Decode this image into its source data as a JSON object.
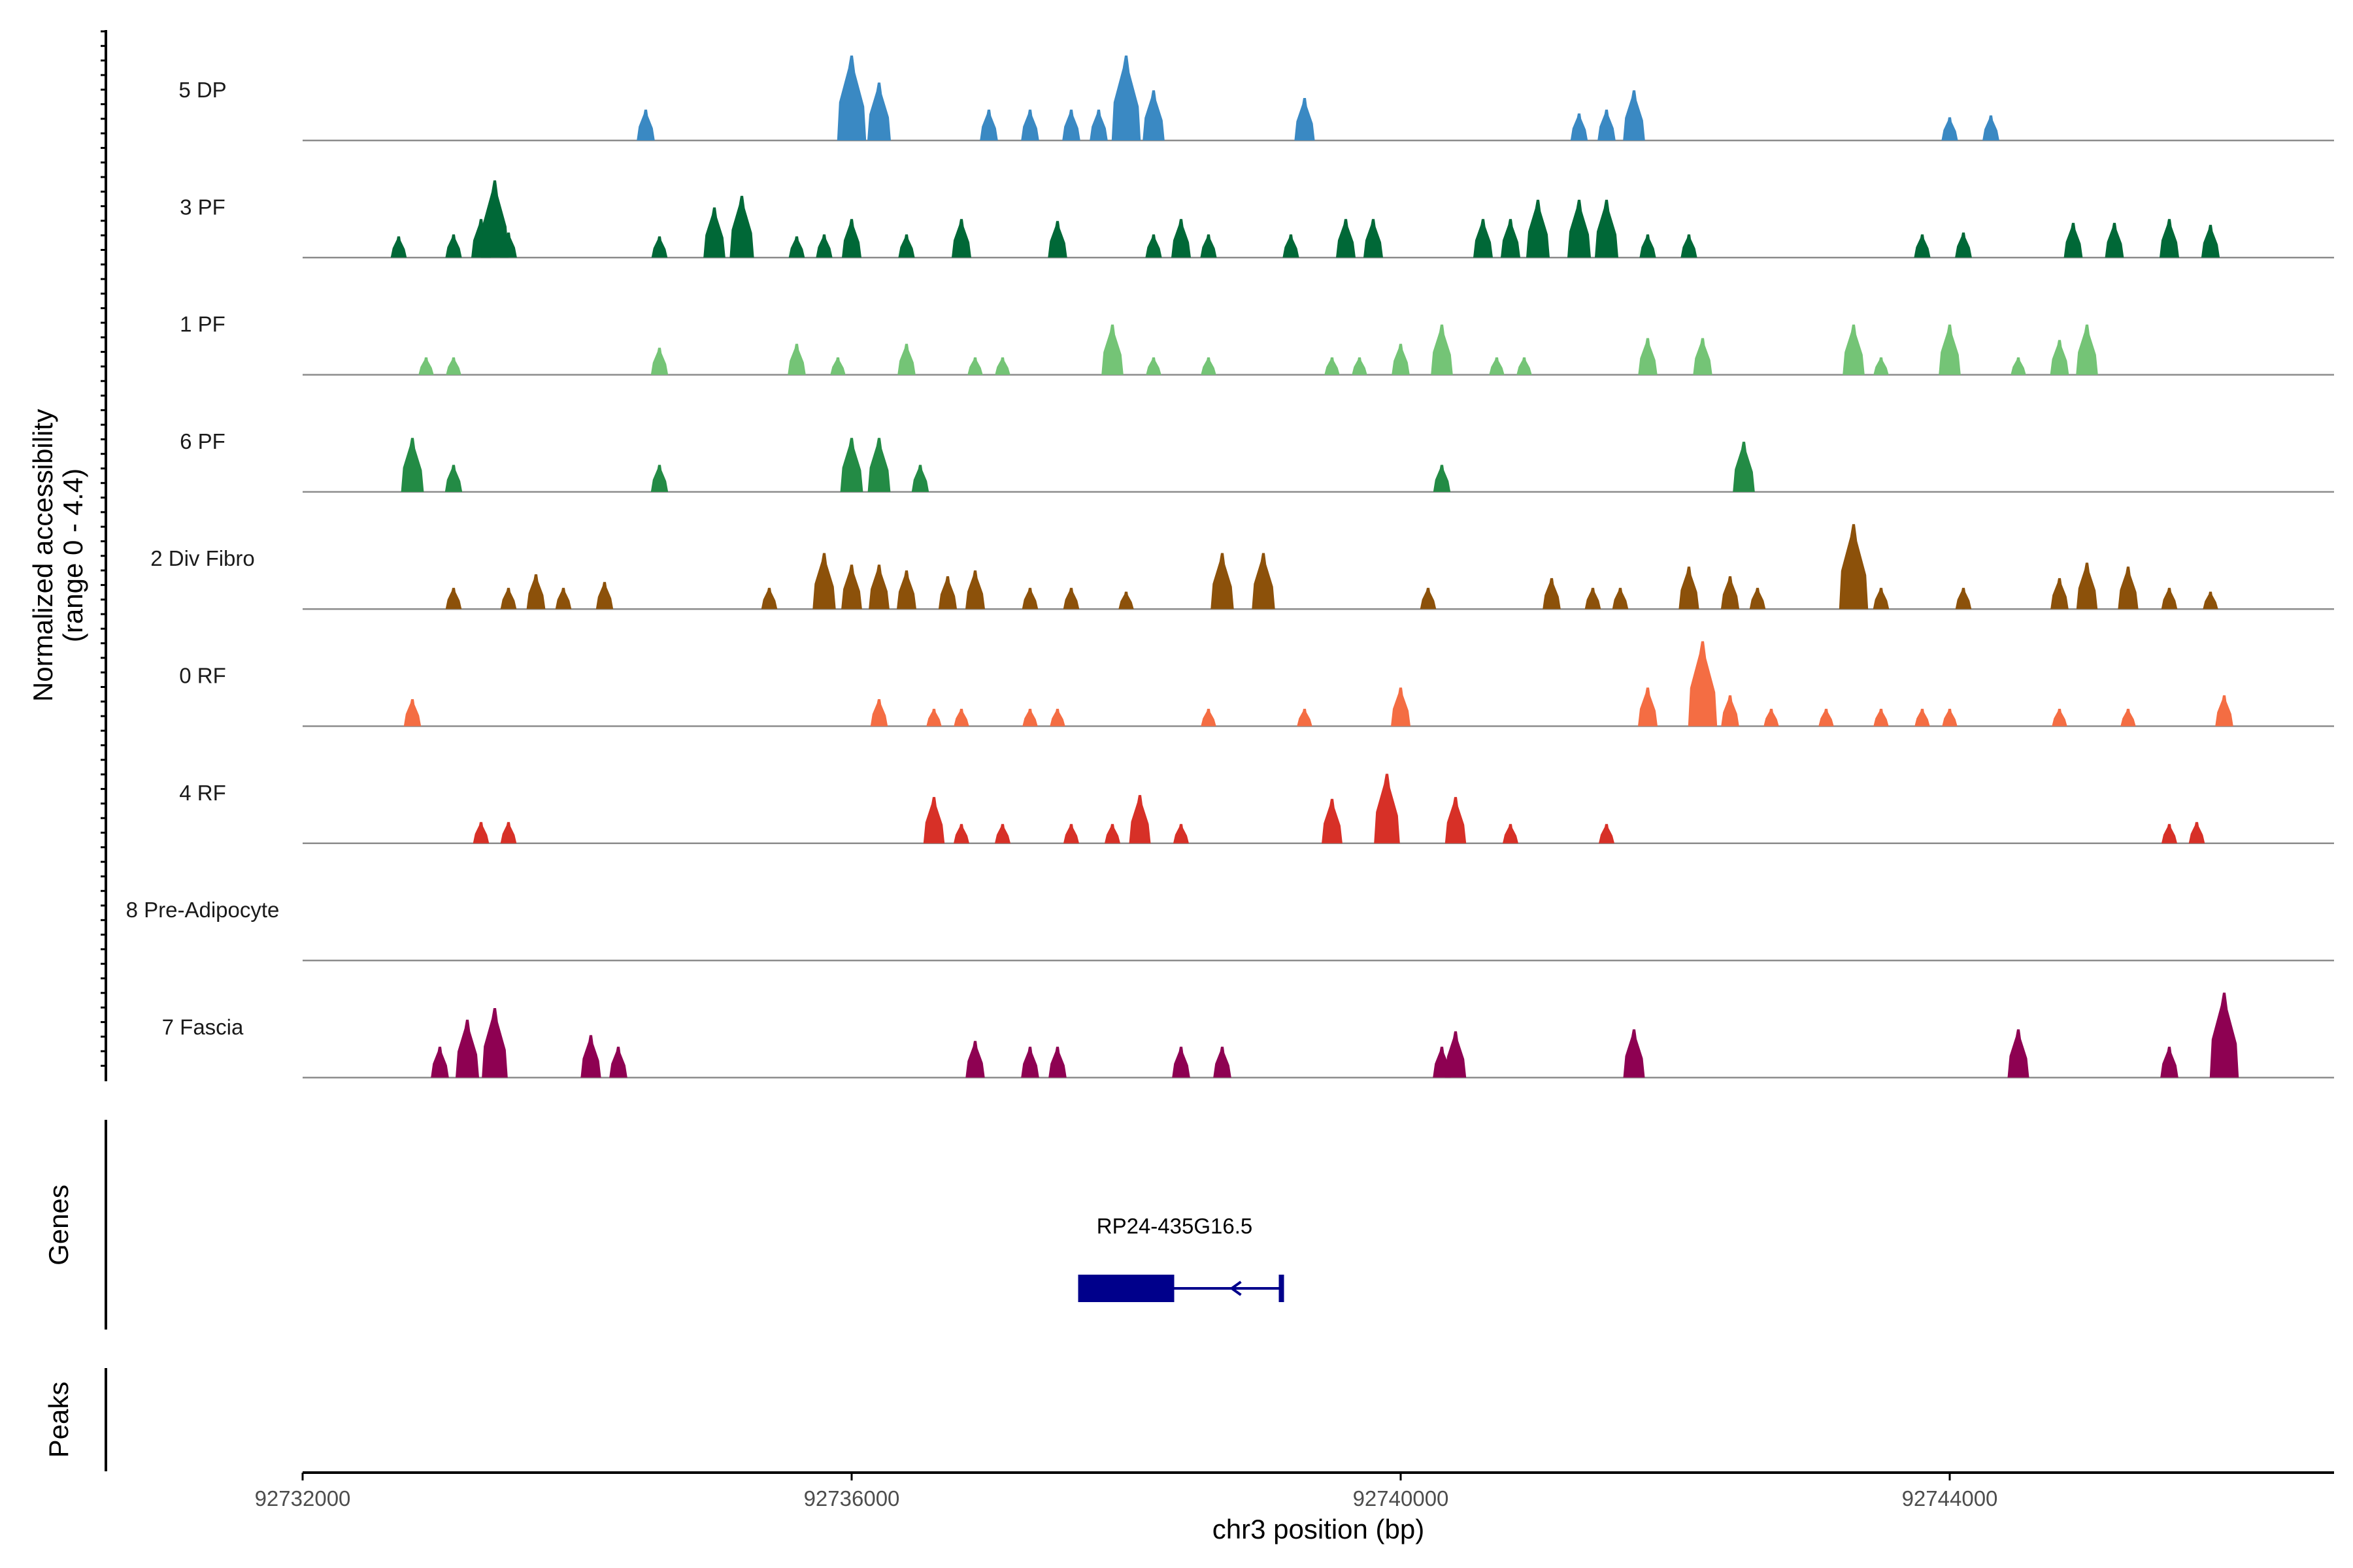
{
  "chart_data": {
    "type": "genome-coverage",
    "ylabel_line1": "Normalized accessibility",
    "ylabel_line2": "(range 0 - 4.4)",
    "y_range": [
      0,
      4.4
    ],
    "xlabel": "chr3 position (bp)",
    "x_range": [
      92732000,
      92746800
    ],
    "x_ticks": [
      92732000,
      92736000,
      92740000,
      92744000
    ],
    "x_tick_labels": [
      "92732000",
      "92736000",
      "92740000",
      "92744000"
    ],
    "tracks": [
      {
        "name": "5 DP",
        "color": "#3a89c3",
        "peaks": [
          [
            92734500,
            1.6
          ],
          [
            92736000,
            4.4
          ],
          [
            92736200,
            3.0
          ],
          [
            92737000,
            1.6
          ],
          [
            92737300,
            1.6
          ],
          [
            92737600,
            1.6
          ],
          [
            92737800,
            1.6
          ],
          [
            92738000,
            4.4
          ],
          [
            92738200,
            2.6
          ],
          [
            92739300,
            2.2
          ],
          [
            92741300,
            1.4
          ],
          [
            92741500,
            1.6
          ],
          [
            92741700,
            2.6
          ],
          [
            92744000,
            1.2
          ],
          [
            92744300,
            1.3
          ]
        ]
      },
      {
        "name": "3 PF",
        "color": "#006837",
        "peaks": [
          [
            92732700,
            1.1
          ],
          [
            92733100,
            1.2
          ],
          [
            92733300,
            2.0
          ],
          [
            92733400,
            4.0
          ],
          [
            92733500,
            1.3
          ],
          [
            92734600,
            1.1
          ],
          [
            92735000,
            2.6
          ],
          [
            92735200,
            3.2
          ],
          [
            92735600,
            1.1
          ],
          [
            92735800,
            1.2
          ],
          [
            92736000,
            2.0
          ],
          [
            92736400,
            1.2
          ],
          [
            92736800,
            2.0
          ],
          [
            92737500,
            1.9
          ],
          [
            92738200,
            1.2
          ],
          [
            92738400,
            2.0
          ],
          [
            92738600,
            1.2
          ],
          [
            92739200,
            1.2
          ],
          [
            92739600,
            2.0
          ],
          [
            92739800,
            2.0
          ],
          [
            92740600,
            2.0
          ],
          [
            92740800,
            2.0
          ],
          [
            92741000,
            3.0
          ],
          [
            92741300,
            3.0
          ],
          [
            92741500,
            3.0
          ],
          [
            92741800,
            1.2
          ],
          [
            92742100,
            1.2
          ],
          [
            92743800,
            1.2
          ],
          [
            92744100,
            1.3
          ],
          [
            92744900,
            1.8
          ],
          [
            92745200,
            1.8
          ],
          [
            92745600,
            2.0
          ],
          [
            92745900,
            1.7
          ]
        ]
      },
      {
        "name": "1 PF",
        "color": "#74c476",
        "peaks": [
          [
            92732900,
            0.9
          ],
          [
            92733100,
            0.9
          ],
          [
            92734600,
            1.4
          ],
          [
            92735600,
            1.6
          ],
          [
            92735900,
            0.9
          ],
          [
            92736400,
            1.6
          ],
          [
            92736900,
            0.9
          ],
          [
            92737100,
            0.9
          ],
          [
            92737900,
            2.6
          ],
          [
            92738200,
            0.9
          ],
          [
            92738600,
            0.9
          ],
          [
            92739500,
            0.9
          ],
          [
            92739700,
            0.9
          ],
          [
            92740000,
            1.6
          ],
          [
            92740300,
            2.6
          ],
          [
            92740700,
            0.9
          ],
          [
            92740900,
            0.9
          ],
          [
            92741800,
            1.9
          ],
          [
            92742200,
            1.9
          ],
          [
            92743300,
            2.6
          ],
          [
            92743500,
            0.9
          ],
          [
            92744000,
            2.6
          ],
          [
            92744500,
            0.9
          ],
          [
            92744800,
            1.8
          ],
          [
            92745000,
            2.6
          ]
        ]
      },
      {
        "name": "6 PF",
        "color": "#238b45",
        "peaks": [
          [
            92732800,
            2.8
          ],
          [
            92733100,
            1.4
          ],
          [
            92734600,
            1.4
          ],
          [
            92736000,
            2.8
          ],
          [
            92736200,
            2.8
          ],
          [
            92736500,
            1.4
          ],
          [
            92740300,
            1.4
          ],
          [
            92742500,
            2.6
          ]
        ]
      },
      {
        "name": "2 Div Fibro",
        "color": "#8c510a",
        "peaks": [
          [
            92733100,
            1.1
          ],
          [
            92733500,
            1.1
          ],
          [
            92733700,
            1.8
          ],
          [
            92733900,
            1.1
          ],
          [
            92734200,
            1.4
          ],
          [
            92735400,
            1.1
          ],
          [
            92735800,
            2.9
          ],
          [
            92736000,
            2.3
          ],
          [
            92736200,
            2.3
          ],
          [
            92736400,
            2.0
          ],
          [
            92736700,
            1.7
          ],
          [
            92736900,
            2.0
          ],
          [
            92737300,
            1.1
          ],
          [
            92737600,
            1.1
          ],
          [
            92738000,
            0.9
          ],
          [
            92738700,
            2.9
          ],
          [
            92739000,
            2.9
          ],
          [
            92740200,
            1.1
          ],
          [
            92741100,
            1.6
          ],
          [
            92741400,
            1.1
          ],
          [
            92741600,
            1.1
          ],
          [
            92742100,
            2.2
          ],
          [
            92742400,
            1.7
          ],
          [
            92742600,
            1.1
          ],
          [
            92743300,
            4.4
          ],
          [
            92743500,
            1.1
          ],
          [
            92744100,
            1.1
          ],
          [
            92744800,
            1.6
          ],
          [
            92745000,
            2.4
          ],
          [
            92745300,
            2.2
          ],
          [
            92745600,
            1.1
          ],
          [
            92745900,
            0.9
          ]
        ]
      },
      {
        "name": "0 RF",
        "color": "#f46d43",
        "peaks": [
          [
            92732800,
            1.4
          ],
          [
            92736200,
            1.4
          ],
          [
            92736600,
            0.9
          ],
          [
            92736800,
            0.9
          ],
          [
            92737300,
            0.9
          ],
          [
            92737500,
            0.9
          ],
          [
            92738600,
            0.9
          ],
          [
            92739300,
            0.9
          ],
          [
            92740000,
            2.0
          ],
          [
            92741800,
            2.0
          ],
          [
            92742200,
            4.4
          ],
          [
            92742400,
            1.6
          ],
          [
            92742700,
            0.9
          ],
          [
            92743100,
            0.9
          ],
          [
            92743500,
            0.9
          ],
          [
            92743800,
            0.9
          ],
          [
            92744000,
            0.9
          ],
          [
            92744800,
            0.9
          ],
          [
            92745300,
            0.9
          ],
          [
            92746000,
            1.6
          ]
        ]
      },
      {
        "name": "4 RF",
        "color": "#d73027",
        "peaks": [
          [
            92733300,
            1.1
          ],
          [
            92733500,
            1.1
          ],
          [
            92736600,
            2.4
          ],
          [
            92736800,
            1.0
          ],
          [
            92737100,
            1.0
          ],
          [
            92737600,
            1.0
          ],
          [
            92737900,
            1.0
          ],
          [
            92738100,
            2.5
          ],
          [
            92738400,
            1.0
          ],
          [
            92739500,
            2.3
          ],
          [
            92739900,
            3.6
          ],
          [
            92740400,
            2.4
          ],
          [
            92740800,
            1.0
          ],
          [
            92741500,
            1.0
          ],
          [
            92745600,
            1.0
          ],
          [
            92745800,
            1.1
          ]
        ]
      },
      {
        "name": "8 Pre-Adipocyte",
        "color": "#999999",
        "peaks": []
      },
      {
        "name": "7 Fascia",
        "color": "#8e0152",
        "peaks": [
          [
            92733000,
            1.6
          ],
          [
            92733200,
            3.0
          ],
          [
            92733400,
            3.6
          ],
          [
            92734100,
            2.2
          ],
          [
            92734300,
            1.6
          ],
          [
            92736900,
            1.9
          ],
          [
            92737300,
            1.6
          ],
          [
            92737500,
            1.6
          ],
          [
            92738400,
            1.6
          ],
          [
            92738700,
            1.6
          ],
          [
            92740300,
            1.6
          ],
          [
            92740400,
            2.4
          ],
          [
            92741700,
            2.5
          ],
          [
            92744500,
            2.5
          ],
          [
            92745600,
            1.6
          ],
          [
            92746000,
            4.4
          ]
        ]
      }
    ],
    "genes_label": "Genes",
    "peaks_label": "Peaks",
    "gene": {
      "name": "RP24-435G16.5",
      "start": 92737650,
      "end": 92739150,
      "exon_start": 92737650,
      "exon_end": 92738350,
      "strand": "-",
      "color": "#00008b"
    }
  }
}
